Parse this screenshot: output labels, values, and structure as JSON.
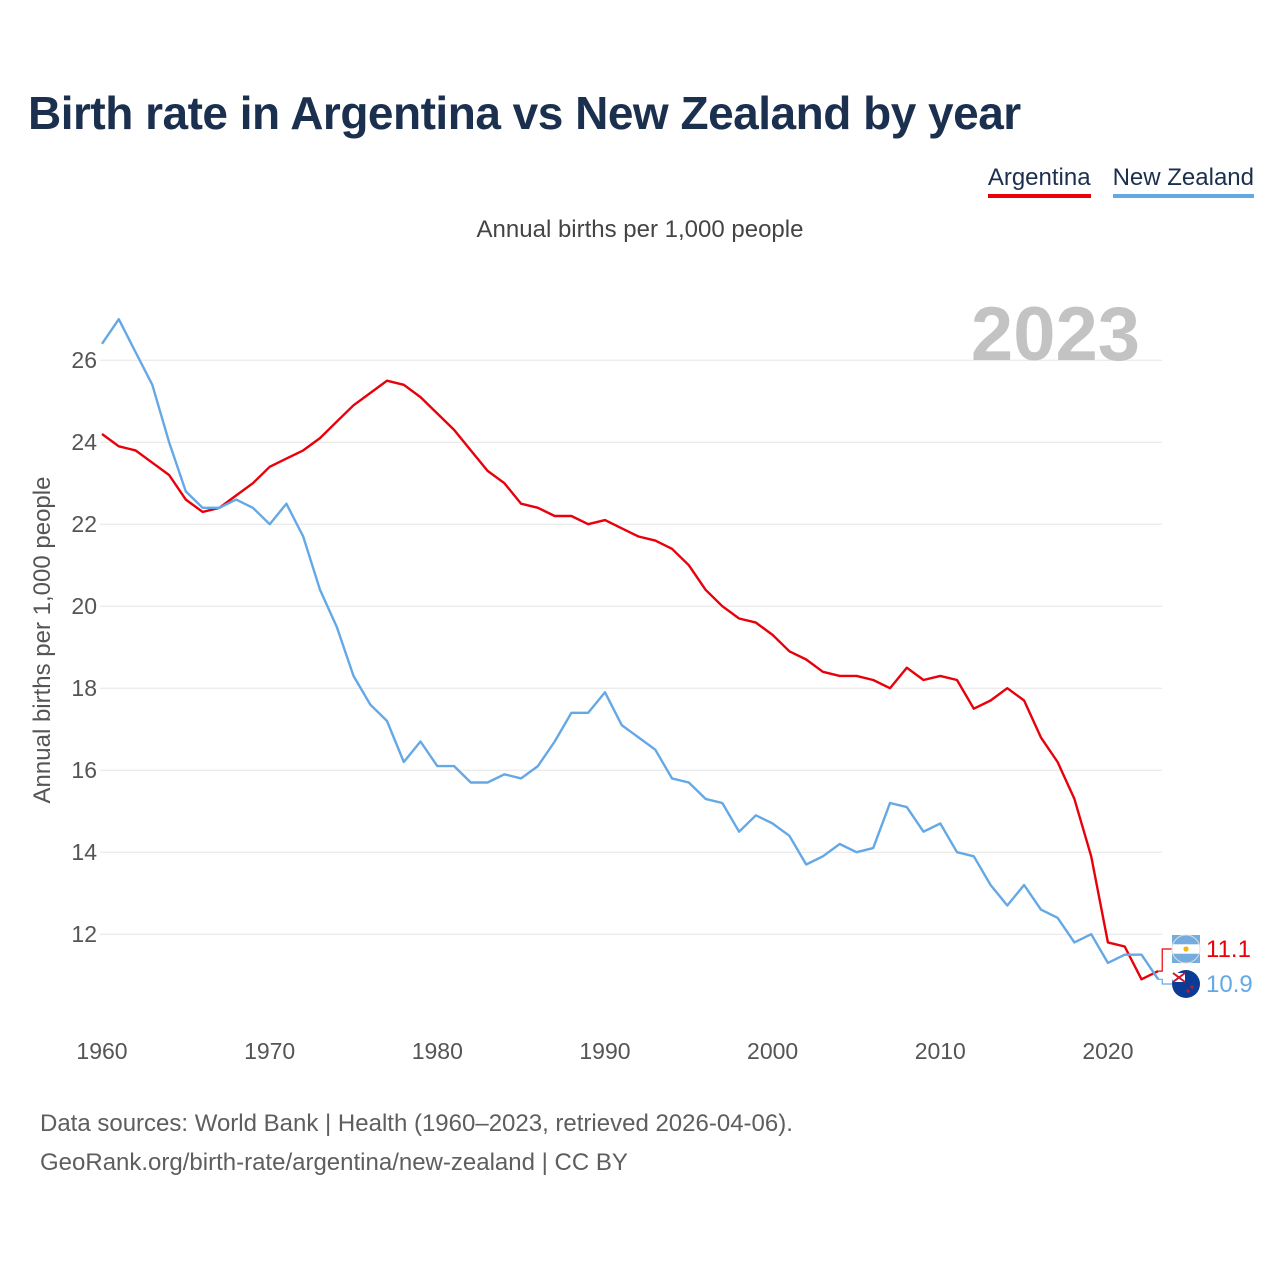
{
  "title": "Birth rate in Argentina vs New Zealand by year",
  "subtitle": "Annual births per 1,000 people",
  "year_label": "2023",
  "legend": [
    {
      "name": "Argentina",
      "color": "#e8000b"
    },
    {
      "name": "New Zealand",
      "color": "#64a8e6"
    }
  ],
  "footer": {
    "line1": "Data sources: World Bank | Health (1960–2023, retrieved 2026-04-06).",
    "line2": "GeoRank.org/birth-rate/argentina/new-zealand | CC BY"
  },
  "chart_data": {
    "type": "line",
    "title": "Birth rate in Argentina vs New Zealand by year",
    "xlabel": "",
    "ylabel": "Annual births per 1,000 people",
    "xlim": [
      1960,
      2024
    ],
    "ylim": [
      10.2,
      27.2
    ],
    "x_ticks": [
      1960,
      1970,
      1980,
      1990,
      2000,
      2010,
      2020
    ],
    "y_ticks": [
      12,
      14,
      16,
      18,
      20,
      22,
      24,
      26
    ],
    "grid": true,
    "legend_position": "top-right",
    "x": [
      1960,
      1961,
      1962,
      1963,
      1964,
      1965,
      1966,
      1967,
      1968,
      1969,
      1970,
      1971,
      1972,
      1973,
      1974,
      1975,
      1976,
      1977,
      1978,
      1979,
      1980,
      1981,
      1982,
      1983,
      1984,
      1985,
      1986,
      1987,
      1988,
      1989,
      1990,
      1991,
      1992,
      1993,
      1994,
      1995,
      1996,
      1997,
      1998,
      1999,
      2000,
      2001,
      2002,
      2003,
      2004,
      2005,
      2006,
      2007,
      2008,
      2009,
      2010,
      2011,
      2012,
      2013,
      2014,
      2015,
      2016,
      2017,
      2018,
      2019,
      2020,
      2021,
      2022,
      2023
    ],
    "series": [
      {
        "name": "Argentina",
        "color": "#e8000b",
        "end_label": "11.1",
        "values": [
          24.2,
          23.9,
          23.8,
          23.5,
          23.2,
          22.6,
          22.3,
          22.4,
          22.7,
          23.0,
          23.4,
          23.6,
          23.8,
          24.1,
          24.5,
          24.9,
          25.2,
          25.5,
          25.4,
          25.1,
          24.7,
          24.3,
          23.8,
          23.3,
          23.0,
          22.5,
          22.4,
          22.2,
          22.2,
          22.0,
          22.1,
          21.9,
          21.7,
          21.6,
          21.4,
          21.0,
          20.4,
          20.0,
          19.7,
          19.6,
          19.3,
          18.9,
          18.7,
          18.4,
          18.3,
          18.3,
          18.2,
          18.0,
          18.5,
          18.2,
          18.3,
          18.2,
          17.5,
          17.7,
          18.0,
          17.7,
          16.8,
          16.2,
          15.3,
          13.9,
          11.8,
          11.7,
          10.9,
          11.1
        ]
      },
      {
        "name": "New Zealand",
        "color": "#64a8e6",
        "end_label": "10.9",
        "values": [
          26.4,
          27.0,
          26.2,
          25.4,
          24.0,
          22.8,
          22.4,
          22.4,
          22.6,
          22.4,
          22.0,
          22.5,
          21.7,
          20.4,
          19.5,
          18.3,
          17.6,
          17.2,
          16.2,
          16.7,
          16.1,
          16.1,
          15.7,
          15.7,
          15.9,
          15.8,
          16.1,
          16.7,
          17.4,
          17.4,
          17.9,
          17.1,
          16.8,
          16.5,
          15.8,
          15.7,
          15.3,
          15.2,
          14.5,
          14.9,
          14.7,
          14.4,
          13.7,
          13.9,
          14.2,
          14.0,
          14.1,
          15.2,
          15.1,
          14.5,
          14.7,
          14.0,
          13.9,
          13.2,
          12.7,
          13.2,
          12.6,
          12.4,
          11.8,
          12.0,
          11.3,
          11.5,
          11.5,
          10.9
        ]
      }
    ]
  }
}
